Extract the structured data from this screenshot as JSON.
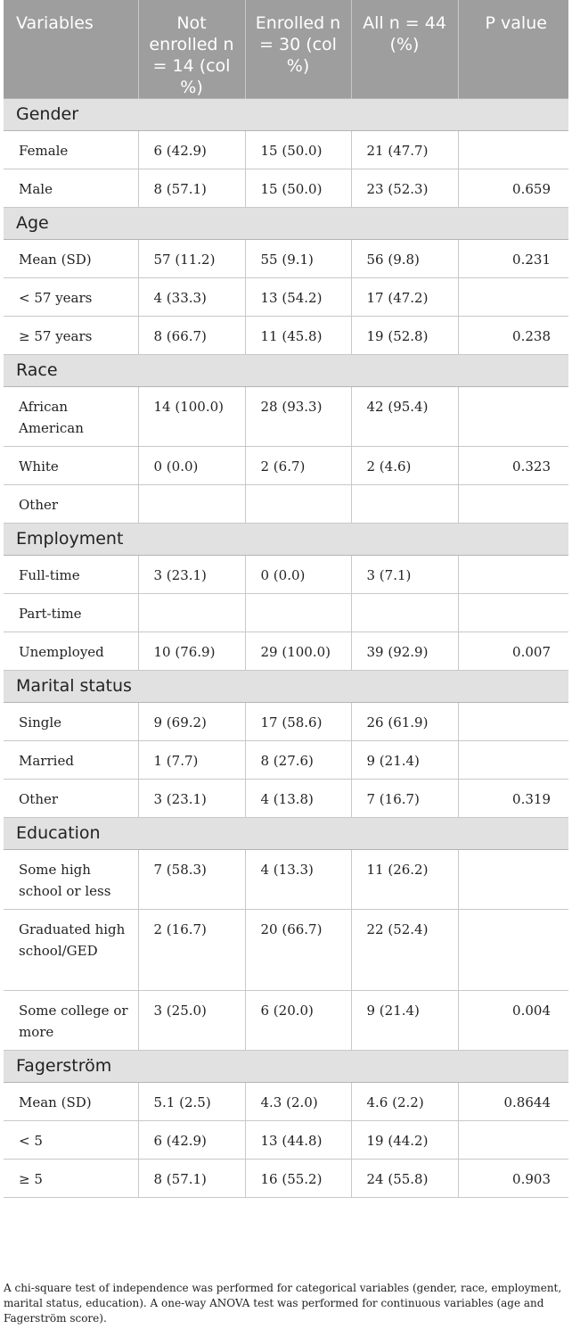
{
  "columns": {
    "variables": "Variables",
    "not_enrolled": "Not enrolled n = 14 (col %)",
    "enrolled": "Enrolled n = 30 (col %)",
    "all": "All n = 44 (%)",
    "p_value": "P value"
  },
  "sections": [
    {
      "title": "Gender",
      "rows": [
        {
          "label": "Female",
          "not_enrolled": "6 (42.9)",
          "enrolled": "15 (50.0)",
          "all": "21 (47.7)",
          "p": ""
        },
        {
          "label": "Male",
          "not_enrolled": "8 (57.1)",
          "enrolled": "15 (50.0)",
          "all": "23 (52.3)",
          "p": "0.659"
        }
      ]
    },
    {
      "title": "Age",
      "rows": [
        {
          "label": "Mean (SD)",
          "not_enrolled": "57 (11.2)",
          "enrolled": "55 (9.1)",
          "all": "56 (9.8)",
          "p": "0.231"
        },
        {
          "label": "< 57 years",
          "not_enrolled": "4 (33.3)",
          "enrolled": "13 (54.2)",
          "all": "17 (47.2)",
          "p": ""
        },
        {
          "label": "≥ 57 years",
          "not_enrolled": "8 (66.7)",
          "enrolled": "11 (45.8)",
          "all": "19 (52.8)",
          "p": "0.238"
        }
      ]
    },
    {
      "title": "Race",
      "rows": [
        {
          "label": "African American",
          "not_enrolled": "14 (100.0)",
          "enrolled": "28 (93.3)",
          "all": "42 (95.4)",
          "p": ""
        },
        {
          "label": "White",
          "not_enrolled": "0 (0.0)",
          "enrolled": "2 (6.7)",
          "all": "2 (4.6)",
          "p": "0.323"
        },
        {
          "label": "Other",
          "not_enrolled": "",
          "enrolled": "",
          "all": "",
          "p": ""
        }
      ]
    },
    {
      "title": "Employment",
      "rows": [
        {
          "label": "Full-time",
          "not_enrolled": "3 (23.1)",
          "enrolled": "0 (0.0)",
          "all": "3 (7.1)",
          "p": ""
        },
        {
          "label": "Part-time",
          "not_enrolled": "",
          "enrolled": "",
          "all": "",
          "p": ""
        },
        {
          "label": "Unemployed",
          "not_enrolled": "10 (76.9)",
          "enrolled": "29 (100.0)",
          "all": "39 (92.9)",
          "p": "0.007"
        }
      ]
    },
    {
      "title": "Marital status",
      "rows": [
        {
          "label": "Single",
          "not_enrolled": "9 (69.2)",
          "enrolled": "17 (58.6)",
          "all": "26 (61.9)",
          "p": ""
        },
        {
          "label": "Married",
          "not_enrolled": "1 (7.7)",
          "enrolled": "8 (27.6)",
          "all": "9 (21.4)",
          "p": ""
        },
        {
          "label": "Other",
          "not_enrolled": "3 (23.1)",
          "enrolled": "4 (13.8)",
          "all": "7 (16.7)",
          "p": "0.319"
        }
      ]
    },
    {
      "title": "Education",
      "rows": [
        {
          "label": "Some high school or less",
          "not_enrolled": "7 (58.3)",
          "enrolled": "4 (13.3)",
          "all": "11 (26.2)",
          "p": ""
        },
        {
          "label": "Graduated high school/GED",
          "not_enrolled": "2 (16.7)",
          "enrolled": "20 (66.7)",
          "all": "22 (52.4)",
          "p": ""
        },
        {
          "label": "Some college or more",
          "not_enrolled": "3 (25.0)",
          "enrolled": "6 (20.0)",
          "all": "9 (21.4)",
          "p": "0.004"
        }
      ]
    },
    {
      "title": "Fagerström",
      "rows": [
        {
          "label": "Mean (SD)",
          "not_enrolled": "5.1 (2.5)",
          "enrolled": "4.3 (2.0)",
          "all": "4.6 (2.2)",
          "p": "0.8644"
        },
        {
          "label": "< 5",
          "not_enrolled": "6 (42.9)",
          "enrolled": "13 (44.8)",
          "all": "19 (44.2)",
          "p": ""
        },
        {
          "label": "≥ 5",
          "not_enrolled": "8 (57.1)",
          "enrolled": "16 (55.2)",
          "all": "24 (55.8)",
          "p": "0.903"
        }
      ]
    }
  ],
  "footnote": "A chi-square test of independence was performed for categorical variables (gender, race, employment, marital status, education). A one-way ANOVA test was performed for continuous variables (age and Fagerström score)."
}
